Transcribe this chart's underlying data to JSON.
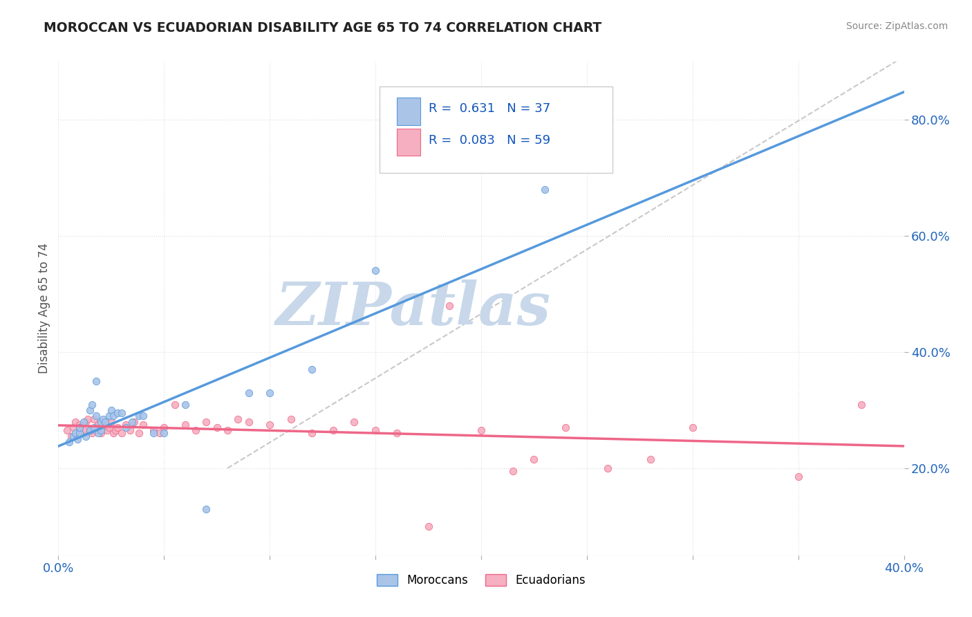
{
  "title": "MOROCCAN VS ECUADORIAN DISABILITY AGE 65 TO 74 CORRELATION CHART",
  "source": "Source: ZipAtlas.com",
  "ylabel": "Disability Age 65 to 74",
  "xlim": [
    0.0,
    0.4
  ],
  "ylim": [
    0.05,
    0.9
  ],
  "xticks": [
    0.0,
    0.05,
    0.1,
    0.15,
    0.2,
    0.25,
    0.3,
    0.35,
    0.4
  ],
  "xticklabels": [
    "0.0%",
    "",
    "",
    "",
    "",
    "",
    "",
    "",
    "40.0%"
  ],
  "yticks_right": [
    0.2,
    0.4,
    0.6,
    0.8
  ],
  "ytick_right_labels": [
    "20.0%",
    "40.0%",
    "60.0%",
    "80.0%"
  ],
  "moroccan_R": 0.631,
  "moroccan_N": 37,
  "ecuadorian_R": 0.083,
  "ecuadorian_N": 59,
  "moroccan_color": "#aac4e8",
  "ecuadorian_color": "#f5afc0",
  "moroccan_line_color": "#5599dd",
  "ecuadorian_line_color": "#ee6688",
  "ref_line_color": "#bbbbbb",
  "background_color": "#ffffff",
  "grid_color": "#dddddd",
  "title_color": "#222222",
  "moroccan_x": [
    0.005,
    0.007,
    0.008,
    0.009,
    0.01,
    0.01,
    0.012,
    0.013,
    0.015,
    0.015,
    0.016,
    0.017,
    0.018,
    0.018,
    0.019,
    0.02,
    0.02,
    0.021,
    0.022,
    0.024,
    0.025,
    0.026,
    0.028,
    0.03,
    0.032,
    0.035,
    0.038,
    0.04,
    0.045,
    0.05,
    0.06,
    0.07,
    0.09,
    0.1,
    0.12,
    0.15,
    0.23
  ],
  "moroccan_y": [
    0.245,
    0.255,
    0.26,
    0.25,
    0.26,
    0.27,
    0.28,
    0.255,
    0.265,
    0.3,
    0.31,
    0.27,
    0.29,
    0.35,
    0.26,
    0.28,
    0.265,
    0.285,
    0.28,
    0.29,
    0.3,
    0.29,
    0.295,
    0.295,
    0.27,
    0.28,
    0.29,
    0.29,
    0.26,
    0.26,
    0.31,
    0.13,
    0.33,
    0.33,
    0.37,
    0.54,
    0.68
  ],
  "ecuadorian_x": [
    0.004,
    0.006,
    0.007,
    0.008,
    0.01,
    0.01,
    0.011,
    0.012,
    0.013,
    0.014,
    0.015,
    0.016,
    0.017,
    0.018,
    0.019,
    0.02,
    0.021,
    0.022,
    0.023,
    0.024,
    0.025,
    0.026,
    0.027,
    0.028,
    0.03,
    0.032,
    0.034,
    0.036,
    0.038,
    0.04,
    0.045,
    0.048,
    0.05,
    0.055,
    0.06,
    0.065,
    0.07,
    0.075,
    0.08,
    0.085,
    0.09,
    0.1,
    0.11,
    0.12,
    0.13,
    0.14,
    0.15,
    0.16,
    0.175,
    0.185,
    0.2,
    0.215,
    0.225,
    0.24,
    0.26,
    0.28,
    0.3,
    0.35,
    0.38
  ],
  "ecuadorian_y": [
    0.265,
    0.255,
    0.27,
    0.28,
    0.265,
    0.275,
    0.26,
    0.265,
    0.28,
    0.285,
    0.265,
    0.26,
    0.285,
    0.265,
    0.275,
    0.26,
    0.27,
    0.28,
    0.265,
    0.27,
    0.28,
    0.26,
    0.265,
    0.27,
    0.26,
    0.275,
    0.265,
    0.28,
    0.26,
    0.275,
    0.265,
    0.26,
    0.27,
    0.31,
    0.275,
    0.265,
    0.28,
    0.27,
    0.265,
    0.285,
    0.28,
    0.275,
    0.285,
    0.26,
    0.265,
    0.28,
    0.265,
    0.26,
    0.1,
    0.48,
    0.265,
    0.195,
    0.215,
    0.27,
    0.2,
    0.215,
    0.27,
    0.185,
    0.31
  ],
  "watermark_text": "ZIPatlas",
  "watermark_color": "#c8d8ea",
  "legend_text_color": "#1155bb",
  "legend_n_color": "#cc3355"
}
